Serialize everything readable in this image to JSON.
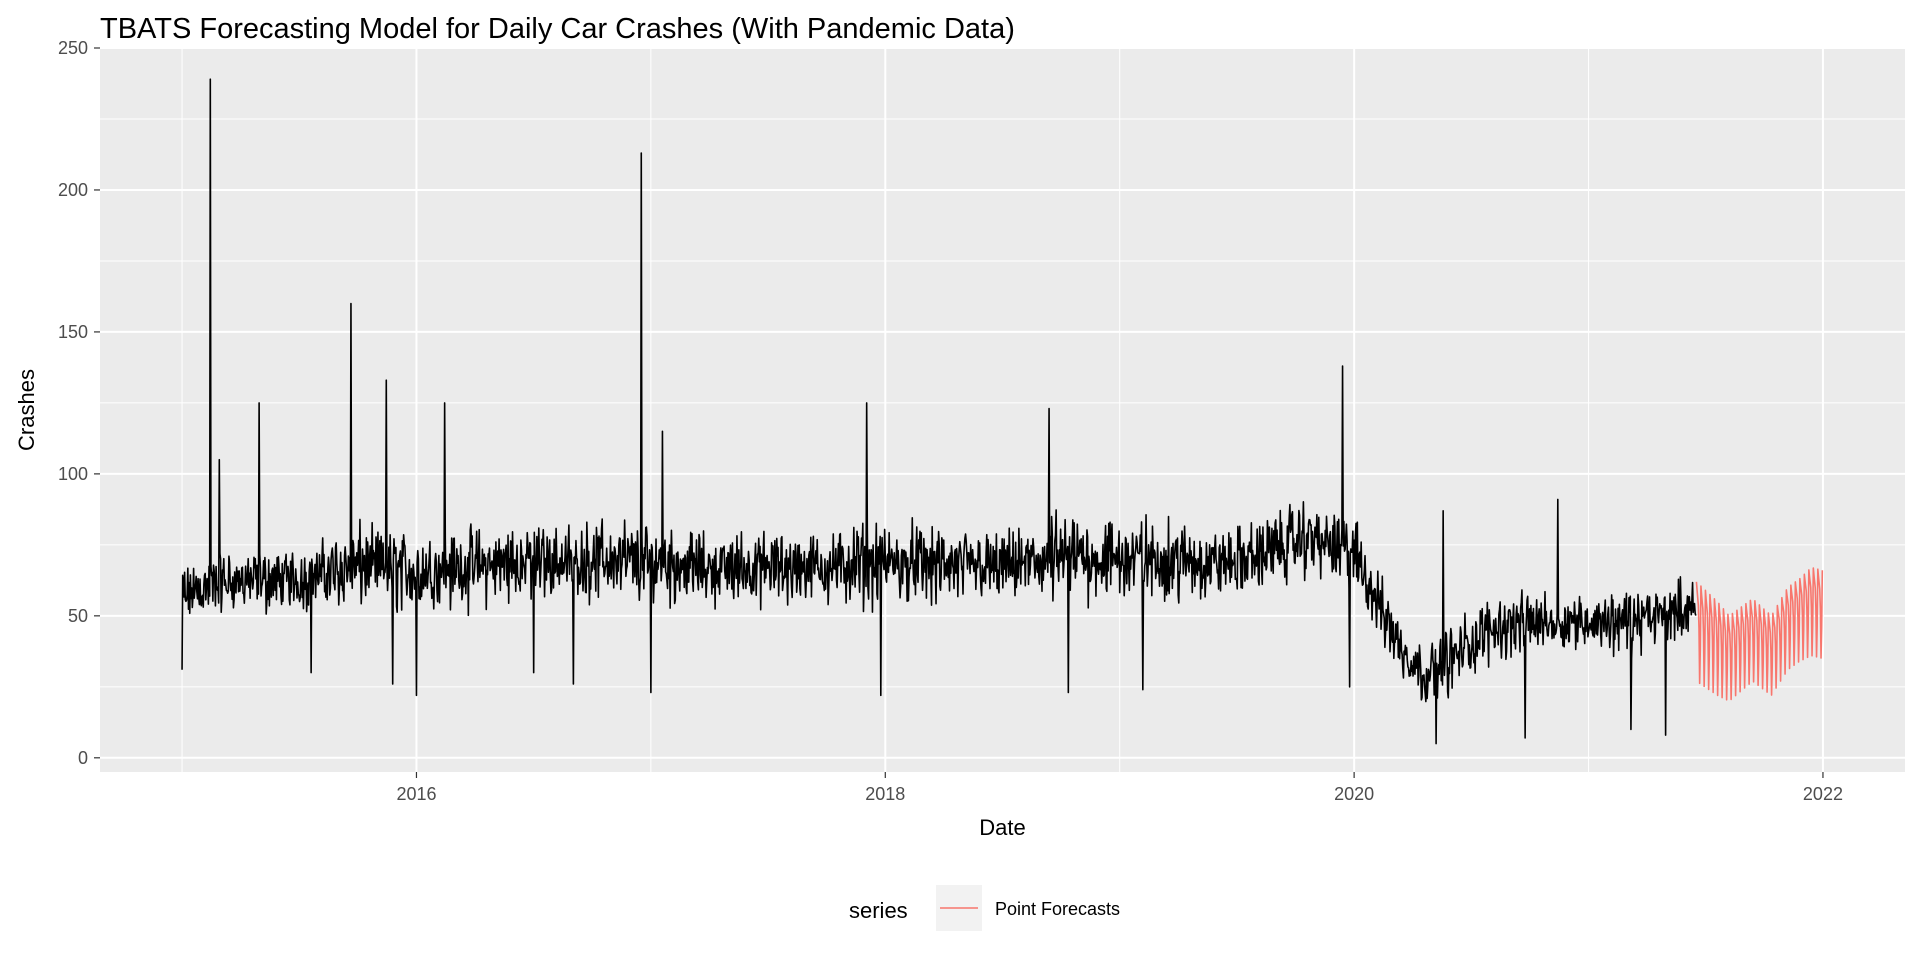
{
  "chart_data": {
    "type": "line",
    "title": "TBATS Forecasting Model for Daily Car Crashes (With Pandemic Data)",
    "xlabel": "Date",
    "ylabel": "Crashes",
    "xlim": [
      2014.65,
      2022.35
    ],
    "ylim": [
      -5,
      250
    ],
    "x_ticks": [
      2016,
      2018,
      2020,
      2022
    ],
    "x_tick_labels": [
      "2016",
      "2018",
      "2020",
      "2022"
    ],
    "y_ticks": [
      0,
      50,
      100,
      150,
      200,
      250
    ],
    "y_tick_labels": [
      "0",
      "50",
      "100",
      "150",
      "200",
      "250"
    ],
    "grid": true,
    "panel_background": "#ebebeb",
    "legend": {
      "title": "series",
      "position": "bottom",
      "entries": [
        {
          "label": "Point Forecasts",
          "color": "#f8766d"
        }
      ]
    },
    "series": [
      {
        "role": "observed",
        "color": "#000000",
        "sampling": "daily",
        "start": "2015-01-01",
        "end": "2021-06-17",
        "envelope": {
          "x": [
            2015.0,
            2015.15,
            2015.5,
            2015.75,
            2016.0,
            2016.5,
            2016.9,
            2017.25,
            2017.75,
            2018.0,
            2018.5,
            2018.8,
            2019.2,
            2019.5,
            2019.8,
            2020.0,
            2020.2,
            2020.3,
            2020.45,
            2020.6,
            2020.8,
            2021.0,
            2021.2,
            2021.46
          ],
          "low": [
            32,
            38,
            40,
            40,
            38,
            42,
            40,
            42,
            42,
            40,
            42,
            40,
            42,
            40,
            48,
            45,
            20,
            10,
            10,
            22,
            25,
            24,
            24,
            30
          ],
          "high": [
            74,
            84,
            84,
            95,
            92,
            96,
            96,
            90,
            92,
            95,
            90,
            100,
            96,
            96,
            104,
            96,
            60,
            50,
            60,
            66,
            66,
            68,
            68,
            72
          ],
          "mid": [
            60,
            62,
            62,
            66,
            64,
            68,
            70,
            66,
            66,
            68,
            67,
            70,
            68,
            68,
            78,
            72,
            35,
            26,
            38,
            48,
            50,
            50,
            50,
            55
          ]
        },
        "spikes": [
          {
            "x": 2015.12,
            "y": 239
          },
          {
            "x": 2015.16,
            "y": 105
          },
          {
            "x": 2015.33,
            "y": 125
          },
          {
            "x": 2015.72,
            "y": 160
          },
          {
            "x": 2015.87,
            "y": 133
          },
          {
            "x": 2016.12,
            "y": 125
          },
          {
            "x": 2016.96,
            "y": 213
          },
          {
            "x": 2017.05,
            "y": 115
          },
          {
            "x": 2017.92,
            "y": 125
          },
          {
            "x": 2018.7,
            "y": 123
          },
          {
            "x": 2019.95,
            "y": 138
          },
          {
            "x": 2020.38,
            "y": 87
          },
          {
            "x": 2020.87,
            "y": 91
          }
        ],
        "dips": [
          {
            "x": 2015.0,
            "y": 31
          },
          {
            "x": 2015.55,
            "y": 30
          },
          {
            "x": 2015.9,
            "y": 26
          },
          {
            "x": 2016.0,
            "y": 22
          },
          {
            "x": 2016.5,
            "y": 30
          },
          {
            "x": 2016.67,
            "y": 26
          },
          {
            "x": 2017.0,
            "y": 23
          },
          {
            "x": 2017.98,
            "y": 22
          },
          {
            "x": 2018.78,
            "y": 23
          },
          {
            "x": 2019.1,
            "y": 24
          },
          {
            "x": 2019.98,
            "y": 25
          },
          {
            "x": 2020.35,
            "y": 5
          },
          {
            "x": 2020.73,
            "y": 7
          },
          {
            "x": 2020.87,
            "y": 7
          },
          {
            "x": 2021.18,
            "y": 10
          },
          {
            "x": 2021.33,
            "y": 8
          }
        ]
      },
      {
        "name": "Point Forecasts",
        "role": "forecast",
        "color": "#f8766d",
        "sampling": "daily",
        "start": "2021-06-18",
        "end": "2021-12-31",
        "weekly_peak": {
          "x": [
            2021.46,
            2021.55,
            2021.6,
            2021.7,
            2021.78,
            2021.85,
            2021.9,
            2021.95,
            2022.0
          ],
          "y": [
            62,
            55,
            50,
            56,
            50,
            60,
            63,
            67,
            66
          ]
        },
        "weekly_trough": {
          "x": [
            2021.46,
            2021.55,
            2021.6,
            2021.7,
            2021.78,
            2021.85,
            2021.9,
            2021.95,
            2022.0
          ],
          "y": [
            27,
            22,
            20,
            27,
            22,
            31,
            34,
            36,
            35
          ]
        }
      }
    ]
  }
}
